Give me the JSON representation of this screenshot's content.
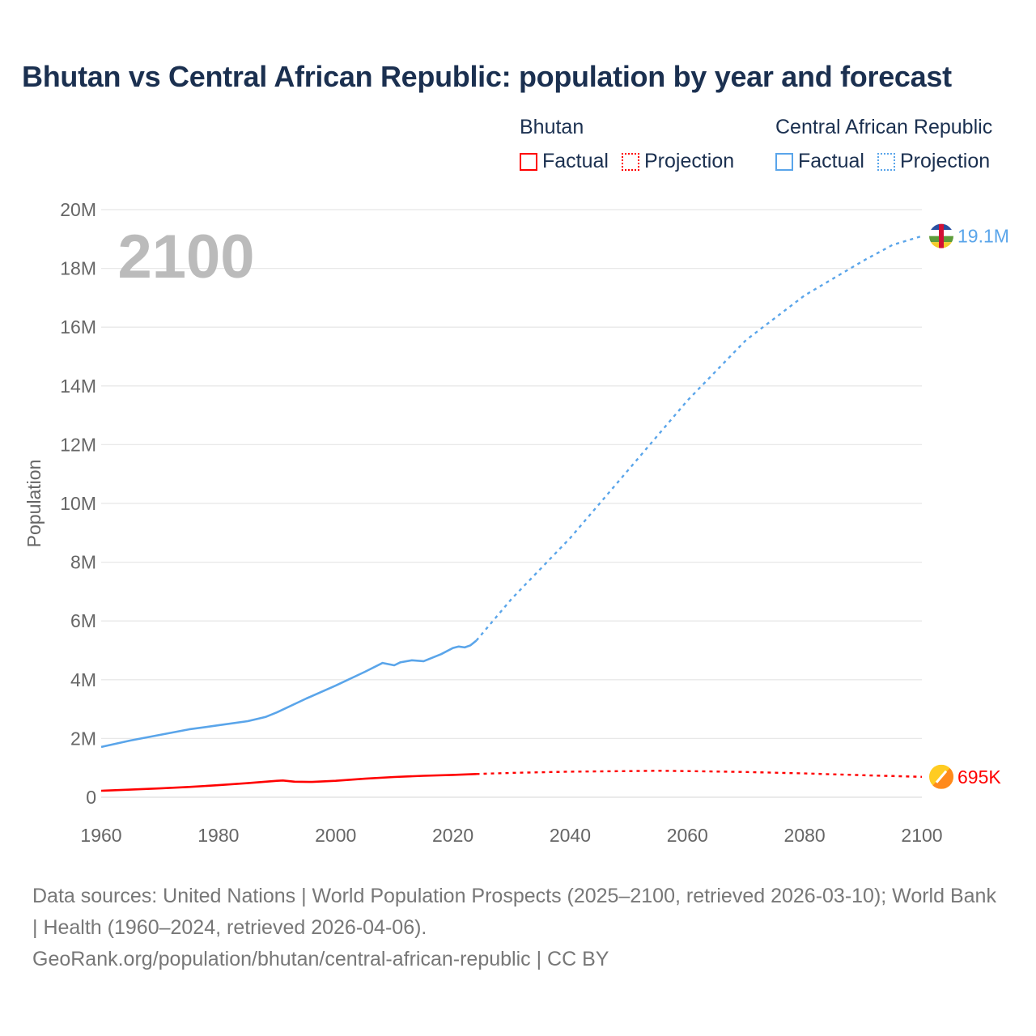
{
  "title": "Bhutan vs Central African Republic: population by year and forecast",
  "legend": {
    "groups": [
      {
        "name": "Bhutan",
        "color": "#ff0000",
        "factual": "Factual",
        "projection": "Projection"
      },
      {
        "name": "Central African Republic",
        "color": "#5aa5ea",
        "factual": "Factual",
        "projection": "Projection"
      }
    ]
  },
  "year_display": "2100",
  "footer": {
    "sources": "Data sources: United Nations | World Population Prospects (2025–2100, retrieved 2026-03-10); World Bank | Health (1960–2024, retrieved 2026-04-06).",
    "url": "GeoRank.org/population/bhutan/central-african-republic | CC BY"
  },
  "chart_data": {
    "type": "line",
    "title": "Bhutan vs Central African Republic: population by year and forecast",
    "xlabel": "",
    "ylabel": "Population",
    "xlim": [
      1960,
      2100
    ],
    "ylim": [
      0,
      20000000
    ],
    "x_ticks": [
      1960,
      1980,
      2000,
      2020,
      2040,
      2060,
      2080,
      2100
    ],
    "x_tick_labels": [
      "1960",
      "1980",
      "2000",
      "2020",
      "2040",
      "2060",
      "2080",
      "2100"
    ],
    "y_ticks": [
      0,
      2000000,
      4000000,
      6000000,
      8000000,
      10000000,
      12000000,
      14000000,
      16000000,
      18000000,
      20000000
    ],
    "y_tick_labels": [
      "0",
      "2M",
      "4M",
      "6M",
      "8M",
      "10M",
      "12M",
      "14M",
      "16M",
      "18M",
      "20M"
    ],
    "grid": true,
    "legend_position": "top-right",
    "series": [
      {
        "name": "Central African Republic",
        "color": "#5aa5ea",
        "end_label": "19.1M",
        "factual": [
          [
            1960,
            1710000
          ],
          [
            1965,
            1930000
          ],
          [
            1970,
            2120000
          ],
          [
            1975,
            2310000
          ],
          [
            1980,
            2450000
          ],
          [
            1985,
            2590000
          ],
          [
            1988,
            2730000
          ],
          [
            1990,
            2890000
          ],
          [
            1995,
            3360000
          ],
          [
            2000,
            3800000
          ],
          [
            2005,
            4270000
          ],
          [
            2008,
            4570000
          ],
          [
            2010,
            4490000
          ],
          [
            2011,
            4590000
          ],
          [
            2013,
            4660000
          ],
          [
            2015,
            4630000
          ],
          [
            2018,
            4870000
          ],
          [
            2020,
            5080000
          ],
          [
            2021,
            5130000
          ],
          [
            2022,
            5100000
          ],
          [
            2023,
            5170000
          ],
          [
            2024,
            5330000
          ]
        ],
        "projection": [
          [
            2024,
            5330000
          ],
          [
            2030,
            6750000
          ],
          [
            2040,
            8820000
          ],
          [
            2050,
            11160000
          ],
          [
            2060,
            13500000
          ],
          [
            2070,
            15560000
          ],
          [
            2080,
            17080000
          ],
          [
            2090,
            18260000
          ],
          [
            2095,
            18800000
          ],
          [
            2100,
            19100000
          ]
        ]
      },
      {
        "name": "Bhutan",
        "color": "#ff0000",
        "end_label": "695K",
        "factual": [
          [
            1960,
            220000
          ],
          [
            1965,
            260000
          ],
          [
            1970,
            300000
          ],
          [
            1975,
            350000
          ],
          [
            1980,
            410000
          ],
          [
            1985,
            480000
          ],
          [
            1990,
            560000
          ],
          [
            1991,
            570000
          ],
          [
            1993,
            530000
          ],
          [
            1996,
            520000
          ],
          [
            2000,
            560000
          ],
          [
            2005,
            630000
          ],
          [
            2010,
            690000
          ],
          [
            2015,
            730000
          ],
          [
            2020,
            760000
          ],
          [
            2024,
            790000
          ]
        ],
        "projection": [
          [
            2024,
            790000
          ],
          [
            2030,
            830000
          ],
          [
            2040,
            870000
          ],
          [
            2050,
            890000
          ],
          [
            2055,
            900000
          ],
          [
            2060,
            890000
          ],
          [
            2070,
            860000
          ],
          [
            2080,
            810000
          ],
          [
            2090,
            750000
          ],
          [
            2100,
            695000
          ]
        ]
      }
    ]
  }
}
